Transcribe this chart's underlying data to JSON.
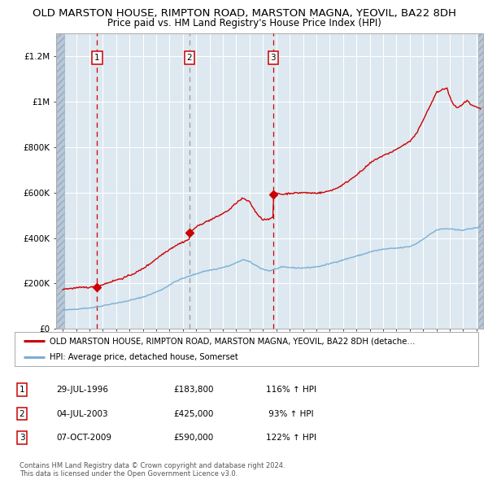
{
  "title1": "OLD MARSTON HOUSE, RIMPTON ROAD, MARSTON MAGNA, YEOVIL, BA22 8DH",
  "title2": "Price paid vs. HM Land Registry's House Price Index (HPI)",
  "xlim": [
    1993.5,
    2025.5
  ],
  "ylim": [
    0,
    1300000
  ],
  "yticks": [
    0,
    200000,
    400000,
    600000,
    800000,
    1000000,
    1200000
  ],
  "ytick_labels": [
    "£0",
    "£200K",
    "£400K",
    "£600K",
    "£800K",
    "£1M",
    "£1.2M"
  ],
  "xticks": [
    1994,
    1995,
    1996,
    1997,
    1998,
    1999,
    2000,
    2001,
    2002,
    2003,
    2004,
    2005,
    2006,
    2007,
    2008,
    2009,
    2010,
    2011,
    2012,
    2013,
    2014,
    2015,
    2016,
    2017,
    2018,
    2019,
    2020,
    2021,
    2022,
    2023,
    2024,
    2025
  ],
  "sale_dates": [
    1996.57,
    2003.5,
    2009.76
  ],
  "sale_prices": [
    183800,
    425000,
    590000
  ],
  "sale_labels": [
    "1",
    "2",
    "3"
  ],
  "vline2_color": "#999999",
  "legend_line1": "OLD MARSTON HOUSE, RIMPTON ROAD, MARSTON MAGNA, YEOVIL, BA22 8DH (detache…",
  "legend_line2": "HPI: Average price, detached house, Somerset",
  "table_rows": [
    [
      "1",
      "29-JUL-1996",
      "£183,800",
      "116% ↑ HPI"
    ],
    [
      "2",
      "04-JUL-2003",
      "£425,000",
      " 93% ↑ HPI"
    ],
    [
      "3",
      "07-OCT-2009",
      "£590,000",
      "122% ↑ HPI"
    ]
  ],
  "footer": "Contains HM Land Registry data © Crown copyright and database right 2024.\nThis data is licensed under the Open Government Licence v3.0.",
  "red_color": "#cc0000",
  "blue_color": "#7aafd4",
  "bg_plot": "#dde8f0",
  "grid_color": "#ffffff",
  "hatch_color": "#b8c8d8",
  "title_fontsize": 9.5,
  "subtitle_fontsize": 8.5,
  "hpi_anchors": [
    [
      1994.0,
      82000
    ],
    [
      1994.5,
      84000
    ],
    [
      1995.0,
      87000
    ],
    [
      1995.5,
      90000
    ],
    [
      1996.0,
      92000
    ],
    [
      1996.5,
      95000
    ],
    [
      1997.0,
      102000
    ],
    [
      1997.5,
      108000
    ],
    [
      1998.0,
      113000
    ],
    [
      1998.5,
      118000
    ],
    [
      1999.0,
      125000
    ],
    [
      1999.5,
      132000
    ],
    [
      2000.0,
      140000
    ],
    [
      2000.5,
      150000
    ],
    [
      2001.0,
      162000
    ],
    [
      2001.5,
      175000
    ],
    [
      2002.0,
      193000
    ],
    [
      2002.5,
      210000
    ],
    [
      2003.0,
      222000
    ],
    [
      2003.5,
      232000
    ],
    [
      2004.0,
      242000
    ],
    [
      2004.5,
      252000
    ],
    [
      2005.0,
      258000
    ],
    [
      2005.5,
      263000
    ],
    [
      2006.0,
      270000
    ],
    [
      2006.5,
      278000
    ],
    [
      2007.0,
      290000
    ],
    [
      2007.5,
      305000
    ],
    [
      2008.0,
      295000
    ],
    [
      2008.5,
      278000
    ],
    [
      2009.0,
      262000
    ],
    [
      2009.5,
      255000
    ],
    [
      2010.0,
      265000
    ],
    [
      2010.5,
      272000
    ],
    [
      2011.0,
      270000
    ],
    [
      2011.5,
      268000
    ],
    [
      2012.0,
      268000
    ],
    [
      2012.5,
      270000
    ],
    [
      2013.0,
      273000
    ],
    [
      2013.5,
      278000
    ],
    [
      2014.0,
      287000
    ],
    [
      2014.5,
      295000
    ],
    [
      2015.0,
      303000
    ],
    [
      2015.5,
      312000
    ],
    [
      2016.0,
      320000
    ],
    [
      2016.5,
      328000
    ],
    [
      2017.0,
      338000
    ],
    [
      2017.5,
      345000
    ],
    [
      2018.0,
      350000
    ],
    [
      2018.5,
      353000
    ],
    [
      2019.0,
      355000
    ],
    [
      2019.5,
      358000
    ],
    [
      2020.0,
      362000
    ],
    [
      2020.5,
      375000
    ],
    [
      2021.0,
      395000
    ],
    [
      2021.5,
      415000
    ],
    [
      2022.0,
      435000
    ],
    [
      2022.5,
      440000
    ],
    [
      2023.0,
      440000
    ],
    [
      2023.5,
      435000
    ],
    [
      2024.0,
      435000
    ],
    [
      2024.5,
      440000
    ],
    [
      2025.0,
      445000
    ],
    [
      2025.3,
      448000
    ]
  ],
  "prop_anchors": [
    [
      1994.0,
      175000
    ],
    [
      1994.5,
      177000
    ],
    [
      1995.0,
      180000
    ],
    [
      1995.5,
      182000
    ],
    [
      1996.0,
      183000
    ],
    [
      1996.57,
      183800
    ],
    [
      1997.0,
      195000
    ],
    [
      1997.5,
      205000
    ],
    [
      1998.0,
      215000
    ],
    [
      1998.5,
      223000
    ],
    [
      1999.0,
      235000
    ],
    [
      1999.5,
      248000
    ],
    [
      2000.0,
      265000
    ],
    [
      2000.5,
      285000
    ],
    [
      2001.0,
      308000
    ],
    [
      2001.5,
      330000
    ],
    [
      2002.0,
      350000
    ],
    [
      2002.5,
      368000
    ],
    [
      2003.0,
      382000
    ],
    [
      2003.49,
      395000
    ],
    [
      2003.51,
      425000
    ],
    [
      2004.0,
      448000
    ],
    [
      2004.5,
      465000
    ],
    [
      2005.0,
      478000
    ],
    [
      2005.5,
      492000
    ],
    [
      2006.0,
      508000
    ],
    [
      2006.5,
      525000
    ],
    [
      2007.0,
      555000
    ],
    [
      2007.5,
      575000
    ],
    [
      2008.0,
      558000
    ],
    [
      2008.5,
      510000
    ],
    [
      2009.0,
      480000
    ],
    [
      2009.75,
      488000
    ],
    [
      2009.77,
      590000
    ],
    [
      2010.0,
      598000
    ],
    [
      2010.5,
      592000
    ],
    [
      2011.0,
      597000
    ],
    [
      2011.5,
      598000
    ],
    [
      2012.0,
      600000
    ],
    [
      2012.5,
      598000
    ],
    [
      2013.0,
      598000
    ],
    [
      2013.5,
      600000
    ],
    [
      2014.0,
      608000
    ],
    [
      2014.5,
      618000
    ],
    [
      2015.0,
      635000
    ],
    [
      2015.5,
      655000
    ],
    [
      2016.0,
      678000
    ],
    [
      2016.5,
      700000
    ],
    [
      2017.0,
      728000
    ],
    [
      2017.5,
      748000
    ],
    [
      2018.0,
      762000
    ],
    [
      2018.5,
      775000
    ],
    [
      2019.0,
      790000
    ],
    [
      2019.5,
      808000
    ],
    [
      2020.0,
      825000
    ],
    [
      2020.5,
      858000
    ],
    [
      2021.0,
      920000
    ],
    [
      2021.5,
      978000
    ],
    [
      2022.0,
      1040000
    ],
    [
      2022.5,
      1055000
    ],
    [
      2022.8,
      1060000
    ],
    [
      2023.0,
      1020000
    ],
    [
      2023.3,
      985000
    ],
    [
      2023.5,
      975000
    ],
    [
      2023.8,
      980000
    ],
    [
      2024.0,
      990000
    ],
    [
      2024.3,
      1005000
    ],
    [
      2024.6,
      985000
    ],
    [
      2025.0,
      975000
    ],
    [
      2025.3,
      970000
    ]
  ]
}
